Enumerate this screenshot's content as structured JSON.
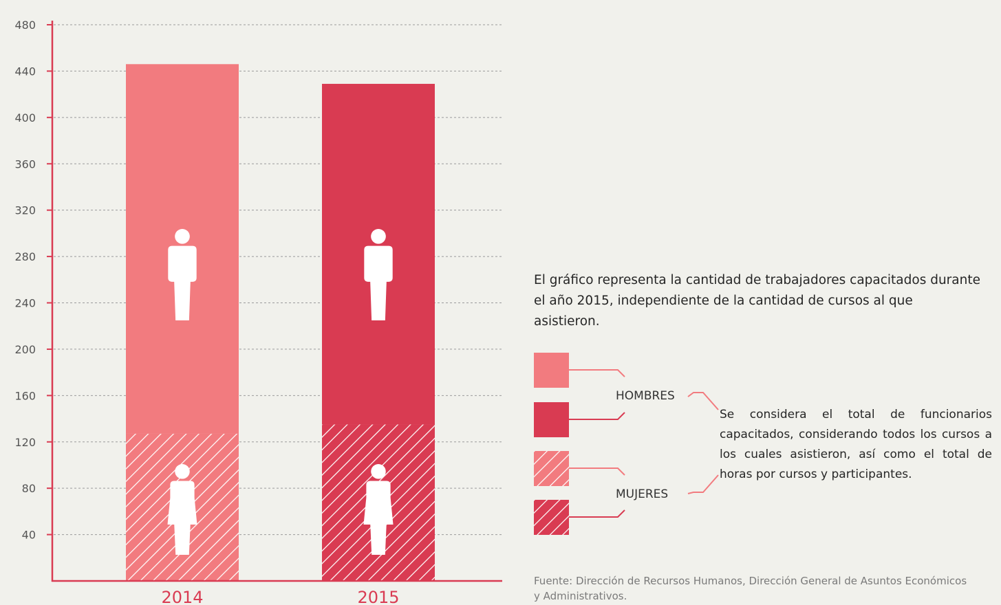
{
  "colors": {
    "hombres_2014": "#f27b7f",
    "hombres_2015": "#d93b52",
    "mujeres_2014": "#f27b7f",
    "mujeres_2015": "#d93b52",
    "axis": "#d93b52",
    "grid": "#9a9a9a",
    "background": "#f1f1ec"
  },
  "icons": {
    "hombres": "man-icon",
    "mujeres": "woman-icon"
  },
  "chart_data": {
    "type": "bar",
    "stacked": true,
    "categories": [
      "2014",
      "2015"
    ],
    "series": [
      {
        "name": "MUJERES",
        "values": [
          127,
          135
        ],
        "pattern": "hatched"
      },
      {
        "name": "HOMBRES",
        "values": [
          319,
          294
        ],
        "pattern": "solid"
      }
    ],
    "totals": [
      446,
      429
    ],
    "y_ticks": [
      40,
      80,
      120,
      160,
      200,
      240,
      280,
      320,
      360,
      400,
      440,
      480
    ],
    "ylim": [
      0,
      480
    ],
    "grid": true,
    "grid_style": "dashed",
    "title": "",
    "xlabel": "",
    "ylabel": "",
    "legend_position": "right"
  },
  "description": "El gráfico representa la cantidad de trabajadores capacitados durante el año 2015, independiente de la cantidad de cursos al que asistieron.",
  "legend": {
    "hombres_label": "HOMBRES",
    "mujeres_label": "MUJERES",
    "note": "Se considera el total de funcionarios capacitados, considerando todos los cursos a los cuales asistieron, así como el total de horas por cursos y participantes."
  },
  "source": "Fuente: Dirección de Recursos Humanos, Dirección General de Asuntos Económicos y Administrativos."
}
